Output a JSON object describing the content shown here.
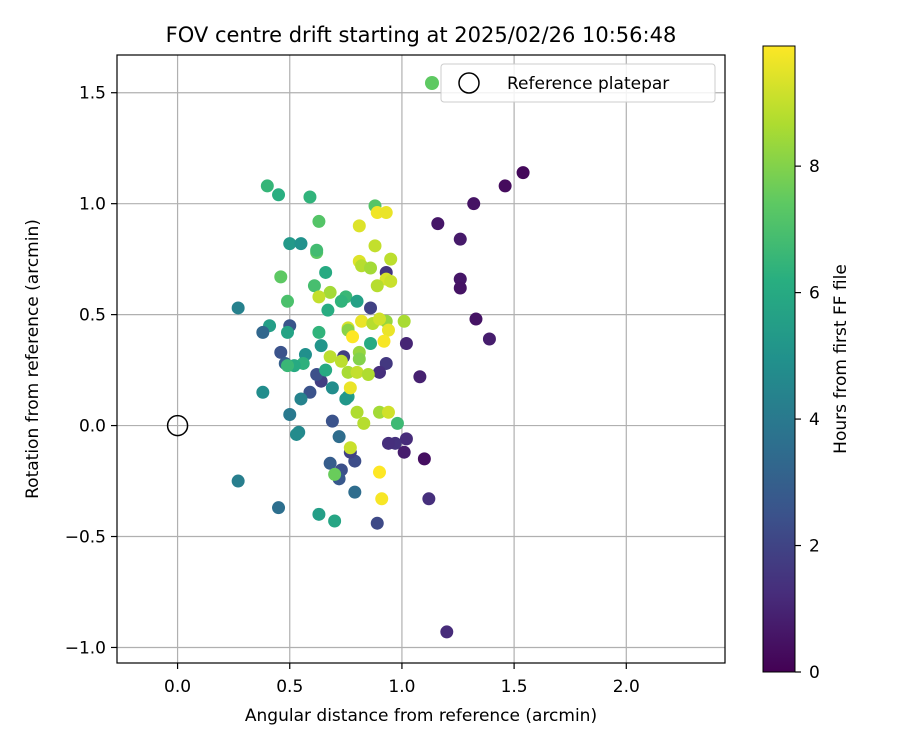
{
  "chart_data": {
    "type": "scatter",
    "title": "FOV centre drift starting at 2025/02/26 10:56:48",
    "xlabel": "Angular distance from reference (arcmin)",
    "ylabel": "Rotation from reference (arcmin)",
    "xlim": [
      -0.27,
      2.44
    ],
    "ylim": [
      -1.07,
      1.67
    ],
    "xticks": [
      0.0,
      0.5,
      1.0,
      1.5,
      2.0
    ],
    "xtick_labels": [
      "0.0",
      "0.5",
      "1.0",
      "1.5",
      "2.0"
    ],
    "yticks": [
      1.5,
      1.0,
      0.5,
      0.0,
      -0.5,
      -1.0
    ],
    "ytick_labels": [
      "1.5",
      "1.0",
      "0.5",
      "0.0",
      "−0.5",
      "−1.0"
    ],
    "grid": true,
    "colormap": "viridis",
    "colorbar": {
      "label": "Hours from first FF file",
      "range": [
        0,
        9.9
      ],
      "ticks": [
        0,
        2,
        4,
        6,
        8
      ],
      "tick_labels": [
        "0",
        "2",
        "4",
        "6",
        "8"
      ]
    },
    "legend": {
      "placement": "top-right",
      "entries": [
        "",
        "Reference platepar"
      ]
    },
    "reference_point": {
      "x": 0.0,
      "y": 0.0,
      "label": "Reference platepar"
    },
    "points": [
      [
        1.54,
        1.14,
        0.2
      ],
      [
        1.46,
        1.08,
        0.3
      ],
      [
        1.32,
        1.0,
        0.5
      ],
      [
        1.16,
        0.91,
        0.6
      ],
      [
        1.26,
        0.84,
        0.7
      ],
      [
        1.26,
        0.66,
        0.6
      ],
      [
        1.26,
        0.62,
        0.5
      ],
      [
        1.33,
        0.48,
        0.5
      ],
      [
        1.39,
        0.39,
        0.8
      ],
      [
        1.08,
        0.22,
        0.9
      ],
      [
        1.02,
        0.37,
        1.0
      ],
      [
        1.1,
        -0.15,
        0.4
      ],
      [
        1.01,
        -0.12,
        0.8
      ],
      [
        1.02,
        -0.06,
        1.2
      ],
      [
        0.97,
        -0.08,
        1.4
      ],
      [
        0.94,
        -0.08,
        1.3
      ],
      [
        1.12,
        -0.33,
        1.3
      ],
      [
        1.2,
        -0.93,
        1.2
      ],
      [
        0.89,
        -0.44,
        2.2
      ],
      [
        0.93,
        0.69,
        1.5
      ],
      [
        0.93,
        0.28,
        1.6
      ],
      [
        0.9,
        0.24,
        1.3
      ],
      [
        0.86,
        0.53,
        1.9
      ],
      [
        0.79,
        -0.16,
        2.3
      ],
      [
        0.77,
        -0.12,
        1.9
      ],
      [
        0.73,
        -0.2,
        2.4
      ],
      [
        0.72,
        -0.24,
        2.7
      ],
      [
        0.72,
        -0.05,
        3.5
      ],
      [
        0.69,
        0.02,
        2.5
      ],
      [
        0.68,
        -0.17,
        2.9
      ],
      [
        0.79,
        -0.3,
        3.5
      ],
      [
        0.74,
        0.31,
        1.8
      ],
      [
        0.64,
        0.2,
        1.8
      ],
      [
        0.62,
        0.23,
        2.4
      ],
      [
        0.59,
        0.15,
        2.5
      ],
      [
        0.5,
        0.45,
        2.6
      ],
      [
        0.46,
        0.33,
        2.5
      ],
      [
        0.48,
        0.28,
        3.0
      ],
      [
        0.41,
        0.45,
        5.5
      ],
      [
        0.38,
        0.42,
        3.3
      ],
      [
        0.27,
        0.53,
        4.3
      ],
      [
        0.38,
        0.15,
        4.8
      ],
      [
        0.27,
        -0.25,
        4.2
      ],
      [
        0.45,
        -0.37,
        3.6
      ],
      [
        0.5,
        0.05,
        4.0
      ],
      [
        0.54,
        -0.03,
        4.6
      ],
      [
        0.53,
        -0.04,
        4.7
      ],
      [
        0.55,
        0.12,
        4.4
      ],
      [
        0.69,
        0.17,
        4.8
      ],
      [
        0.7,
        -0.43,
        5.8
      ],
      [
        0.63,
        -0.4,
        5.5
      ],
      [
        0.57,
        0.32,
        4.9
      ],
      [
        0.64,
        0.36,
        5.1
      ],
      [
        0.63,
        0.42,
        6.4
      ],
      [
        0.49,
        0.42,
        5.7
      ],
      [
        0.56,
        0.28,
        6.3
      ],
      [
        0.52,
        0.27,
        6.0
      ],
      [
        0.49,
        0.27,
        6.6
      ],
      [
        0.66,
        0.25,
        6.0
      ],
      [
        0.5,
        0.82,
        5.3
      ],
      [
        0.55,
        0.82,
        5.0
      ],
      [
        0.61,
        0.63,
        6.9
      ],
      [
        0.66,
        0.69,
        6.0
      ],
      [
        0.67,
        0.52,
        6.1
      ],
      [
        0.4,
        1.08,
        6.5
      ],
      [
        0.45,
        1.04,
        6.2
      ],
      [
        0.59,
        1.03,
        6.4
      ],
      [
        0.63,
        0.92,
        7.2
      ],
      [
        0.62,
        0.78,
        7.4
      ],
      [
        0.62,
        0.79,
        6.8
      ],
      [
        0.46,
        0.67,
        7.4
      ],
      [
        0.49,
        0.56,
        7.0
      ],
      [
        0.76,
        0.13,
        5.4
      ],
      [
        0.75,
        0.12,
        5.2
      ],
      [
        0.75,
        0.58,
        6.6
      ],
      [
        0.73,
        0.56,
        6.4
      ],
      [
        0.8,
        0.56,
        5.6
      ],
      [
        0.86,
        0.37,
        6.0
      ],
      [
        0.98,
        0.01,
        6.7
      ],
      [
        0.88,
        0.99,
        7.2
      ],
      [
        0.89,
        0.96,
        9.7
      ],
      [
        0.93,
        0.96,
        9.6
      ],
      [
        0.81,
        0.9,
        9.4
      ],
      [
        0.88,
        0.81,
        9.0
      ],
      [
        0.95,
        0.75,
        8.9
      ],
      [
        0.81,
        0.74,
        9.4
      ],
      [
        0.82,
        0.72,
        8.8
      ],
      [
        0.86,
        0.71,
        8.5
      ],
      [
        0.93,
        0.66,
        9.3
      ],
      [
        0.95,
        0.65,
        9.1
      ],
      [
        0.89,
        0.63,
        8.8
      ],
      [
        0.68,
        0.6,
        8.5
      ],
      [
        0.63,
        0.58,
        9.0
      ],
      [
        0.82,
        0.47,
        9.6
      ],
      [
        0.87,
        0.46,
        8.8
      ],
      [
        1.01,
        0.47,
        8.6
      ],
      [
        0.93,
        0.47,
        8.3
      ],
      [
        0.9,
        0.48,
        9.2
      ],
      [
        0.94,
        0.43,
        9.6
      ],
      [
        0.76,
        0.44,
        9.3
      ],
      [
        0.76,
        0.43,
        8.1
      ],
      [
        0.78,
        0.4,
        9.9
      ],
      [
        0.92,
        0.38,
        9.8
      ],
      [
        0.68,
        0.31,
        8.9
      ],
      [
        0.81,
        0.33,
        8.3
      ],
      [
        0.81,
        0.3,
        8.0
      ],
      [
        0.73,
        0.29,
        8.9
      ],
      [
        0.76,
        0.24,
        8.6
      ],
      [
        0.8,
        0.24,
        9.0
      ],
      [
        0.85,
        0.23,
        8.7
      ],
      [
        0.77,
        0.17,
        9.6
      ],
      [
        0.8,
        0.06,
        8.7
      ],
      [
        0.9,
        0.06,
        8.5
      ],
      [
        0.94,
        0.06,
        9.2
      ],
      [
        0.83,
        0.01,
        8.8
      ],
      [
        0.77,
        -0.1,
        9.1
      ],
      [
        0.7,
        -0.22,
        7.6
      ],
      [
        0.9,
        -0.21,
        9.9
      ],
      [
        0.91,
        -0.33,
        9.8
      ]
    ]
  }
}
